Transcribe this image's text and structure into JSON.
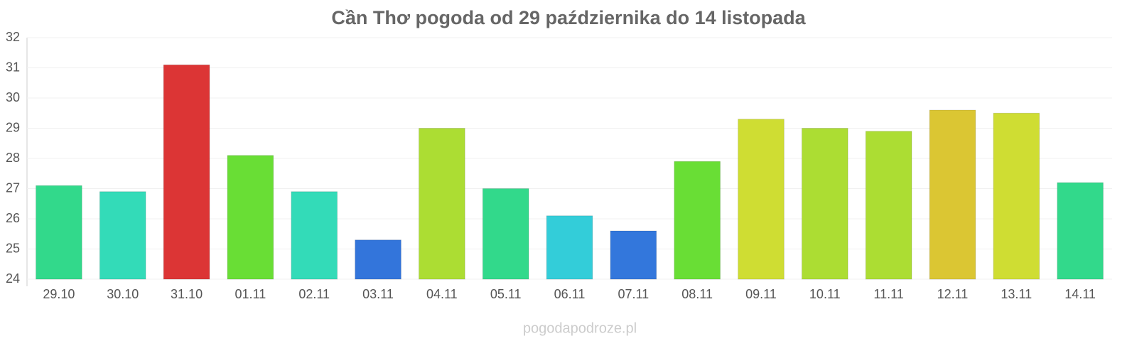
{
  "chart_data": {
    "type": "bar",
    "title": "Cần Thơ pogoda od 29 października do 14 listopada",
    "source": "pogodapodroze.pl",
    "categories": [
      "29.10",
      "30.10",
      "31.10",
      "01.11",
      "02.11",
      "03.11",
      "04.11",
      "05.11",
      "06.11",
      "07.11",
      "08.11",
      "09.11",
      "10.11",
      "11.11",
      "12.11",
      "13.11",
      "14.11"
    ],
    "values": [
      27.1,
      26.9,
      31.1,
      28.1,
      26.9,
      25.3,
      29.0,
      27.0,
      26.1,
      25.6,
      27.9,
      29.3,
      29.0,
      28.9,
      29.6,
      29.5,
      27.2
    ],
    "colors": [
      "#32d98b",
      "#33dbb8",
      "#dc3535",
      "#69de35",
      "#33dbb8",
      "#3375db",
      "#acdd33",
      "#32d98b",
      "#33cdd9",
      "#3377dc",
      "#69de35",
      "#cfdd33",
      "#acdd33",
      "#acdd33",
      "#dbc633",
      "#cfdd33",
      "#32d98b"
    ],
    "ylim": [
      24,
      32
    ],
    "yticks": [
      24,
      25,
      26,
      27,
      28,
      29,
      30,
      31,
      32
    ],
    "grid": true
  }
}
